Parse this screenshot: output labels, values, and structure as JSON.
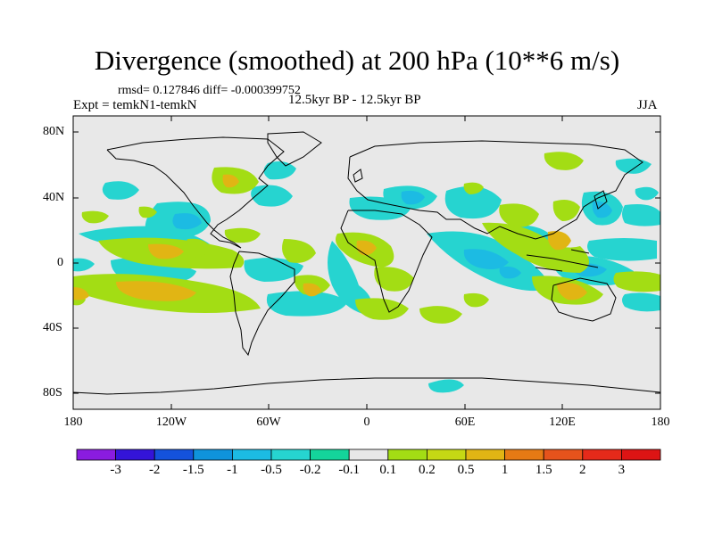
{
  "title": "Divergence (smoothed) at 200 hPa (10**6 m/s)",
  "stats": "rmsd= 0.127846  diff= -0.000399752",
  "expt": "Expt = temkN1-temkN",
  "period": "12.5kyr BP - 12.5kyr BP",
  "season": "JJA",
  "lat_ticks": [
    "80N",
    "40N",
    "0",
    "40S",
    "80S"
  ],
  "lon_ticks": [
    "180",
    "120W",
    "60W",
    "0",
    "60E",
    "120E",
    "180"
  ],
  "colorbar": {
    "labels": [
      "-3",
      "-2",
      "-1.5",
      "-1",
      "-0.5",
      "-0.2",
      "-0.1",
      "0.1",
      "0.2",
      "0.5",
      "1",
      "1.5",
      "2",
      "3"
    ],
    "colors": [
      "#8a1ce0",
      "#3414d8",
      "#1452dc",
      "#0f93db",
      "#1cbbe3",
      "#26d4d0",
      "#14d49b",
      "#e8e8e8",
      "#a3dd14",
      "#c5d814",
      "#e1b514",
      "#e67a14",
      "#e6531c",
      "#e52a1a",
      "#dd1414"
    ]
  },
  "colors": {
    "background": "#e8e8e8",
    "coast": "#000000"
  }
}
